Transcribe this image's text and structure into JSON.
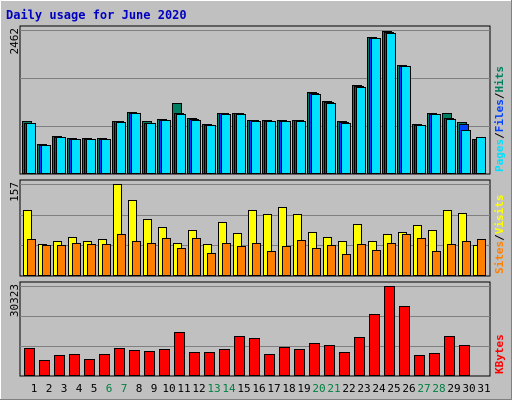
{
  "title": "Daily usage for June 2020",
  "colors": {
    "background": "#c0c0c0",
    "title": "#0000c0",
    "hits": "#008060",
    "files": "#0040ff",
    "pages": "#00e0ff",
    "visits": "#ffff00",
    "sites": "#ff8000",
    "kbytes": "#ff0000",
    "weekend_label": "#008040"
  },
  "chart_data": [
    {
      "type": "bar",
      "name": "hits-files-pages",
      "axis_max_label": "2462",
      "right_label_parts": [
        "Pages",
        "Files",
        "Hits"
      ],
      "ylim": [
        0,
        2462
      ],
      "x": [
        1,
        2,
        3,
        4,
        5,
        6,
        7,
        8,
        9,
        10,
        11,
        12,
        13,
        14,
        15,
        16,
        17,
        18,
        19,
        20,
        21,
        22,
        23,
        24,
        25,
        26,
        27,
        28,
        29,
        30,
        31
      ],
      "series": [
        {
          "name": "Hits",
          "values": [
            900,
            510,
            650,
            610,
            610,
            610,
            910,
            1060,
            900,
            940,
            1210,
            950,
            850,
            1050,
            1050,
            930,
            920,
            920,
            930,
            1400,
            1240,
            900,
            1520,
            2350,
            2440,
            1870,
            850,
            1050,
            1050,
            890,
            600
          ]
        },
        {
          "name": "Files",
          "values": [
            880,
            500,
            640,
            600,
            600,
            600,
            900,
            1050,
            880,
            930,
            1040,
            940,
            840,
            1040,
            1040,
            920,
            910,
            910,
            920,
            1380,
            1230,
            890,
            1500,
            2330,
            2420,
            1850,
            840,
            1030,
            960,
            850,
            590
          ]
        },
        {
          "name": "Pages",
          "values": [
            870,
            490,
            630,
            590,
            590,
            590,
            890,
            1040,
            870,
            920,
            1030,
            930,
            830,
            1030,
            1030,
            910,
            900,
            900,
            910,
            1370,
            1220,
            880,
            1490,
            2320,
            2410,
            1840,
            830,
            1020,
            940,
            760,
            630
          ]
        }
      ]
    },
    {
      "type": "bar",
      "name": "visits-sites",
      "axis_max_label": "157",
      "right_label_parts": [
        "Sites",
        "Visits"
      ],
      "ylim": [
        0,
        157
      ],
      "x": [
        1,
        2,
        3,
        4,
        5,
        6,
        7,
        8,
        9,
        10,
        11,
        12,
        13,
        14,
        15,
        16,
        17,
        18,
        19,
        20,
        21,
        22,
        23,
        24,
        25,
        26,
        27,
        28,
        29,
        30,
        31
      ],
      "series": [
        {
          "name": "Visits",
          "values": [
            112,
            55,
            60,
            67,
            60,
            63,
            157,
            130,
            98,
            83,
            57,
            78,
            55,
            92,
            73,
            112,
            105,
            118,
            105,
            75,
            67,
            60,
            88,
            60,
            72,
            75,
            87,
            78,
            113,
            108,
            53
          ]
        },
        {
          "name": "Sites",
          "values": [
            63,
            53,
            53,
            57,
            55,
            55,
            72,
            60,
            57,
            65,
            48,
            65,
            40,
            57,
            52,
            57,
            43,
            52,
            62,
            48,
            53,
            37,
            55,
            45,
            57,
            72,
            65,
            43,
            55,
            60,
            63
          ]
        }
      ]
    },
    {
      "type": "bar",
      "name": "kbytes",
      "axis_max_label": "30323",
      "right_label_parts": [
        "KBytes"
      ],
      "ylim": [
        0,
        30323
      ],
      "x": [
        1,
        2,
        3,
        4,
        5,
        6,
        7,
        8,
        9,
        10,
        11,
        12,
        13,
        14,
        15,
        16,
        17,
        18,
        19,
        20,
        21,
        22,
        23,
        24,
        25,
        26,
        27,
        28,
        29,
        30,
        31
      ],
      "series": [
        {
          "name": "KBytes",
          "values": [
            9500,
            5500,
            7200,
            7400,
            5800,
            7400,
            9400,
            8900,
            8300,
            9000,
            14800,
            8000,
            8000,
            9000,
            13600,
            12700,
            7400,
            9800,
            9000,
            11100,
            10500,
            8000,
            13000,
            20800,
            30323,
            23700,
            7000,
            7600,
            13600,
            10500,
            null
          ]
        }
      ]
    }
  ],
  "x_labels": [
    "1",
    "2",
    "3",
    "4",
    "5",
    "6",
    "7",
    "8",
    "9",
    "10",
    "11",
    "12",
    "13",
    "14",
    "15",
    "16",
    "17",
    "18",
    "19",
    "20",
    "21",
    "22",
    "23",
    "24",
    "25",
    "26",
    "27",
    "28",
    "29",
    "30",
    "31"
  ],
  "weekend_days": [
    6,
    7,
    13,
    14,
    20,
    21,
    27,
    28
  ]
}
